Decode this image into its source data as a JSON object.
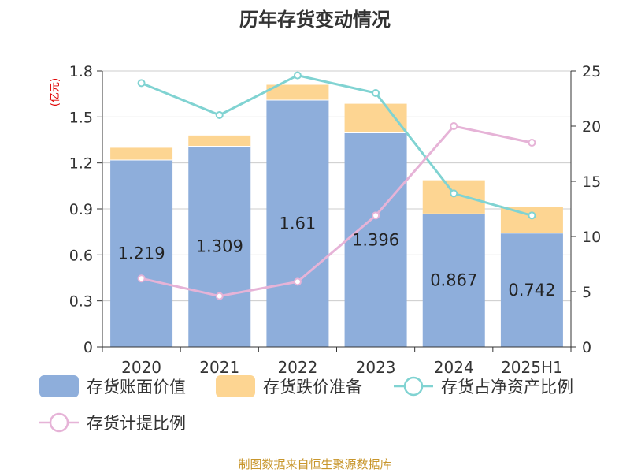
{
  "chart_data": {
    "type": "bar",
    "title": "历年存货变动情况",
    "y_unit": "(亿元)",
    "y2_unit": "%",
    "categories": [
      "2020",
      "2021",
      "2022",
      "2023",
      "2024",
      "2025H1"
    ],
    "series": [
      {
        "name": "存货账面价值",
        "kind": "bar",
        "axis": "left",
        "values": [
          1.219,
          1.309,
          1.61,
          1.396,
          0.867,
          0.742
        ],
        "labels": [
          "1.219",
          "1.309",
          "1.61",
          "1.396",
          "0.867",
          "0.742"
        ]
      },
      {
        "name": "存货跌价准备",
        "kind": "bar-stacked",
        "axis": "left",
        "values": [
          0.08,
          0.07,
          0.1,
          0.19,
          0.22,
          0.17
        ]
      },
      {
        "name": "存货占净资产比例",
        "kind": "line",
        "axis": "right",
        "values": [
          23.9,
          21.0,
          24.6,
          23.0,
          13.9,
          11.9
        ]
      },
      {
        "name": "存货计提比例",
        "kind": "line",
        "axis": "right",
        "values": [
          6.2,
          4.6,
          5.9,
          11.9,
          20.0,
          18.5
        ]
      }
    ],
    "y_ticks": [
      "0",
      "0.3",
      "0.6",
      "0.9",
      "1.2",
      "1.5",
      "1.8"
    ],
    "y_range": [
      0,
      1.8
    ],
    "y2_ticks": [
      "0",
      "5",
      "10",
      "15",
      "20",
      "25"
    ],
    "y2_range": [
      0,
      25
    ],
    "grid": true,
    "legend_position": "bottom"
  },
  "colors": {
    "bar_book_value": "#8eaedb",
    "bar_provision": "#fdd592",
    "line_ratio_net_assets": "#80d3d2",
    "line_provision_ratio": "#e6b3d7"
  },
  "source_text": "制图数据来自恒生聚源数据库"
}
